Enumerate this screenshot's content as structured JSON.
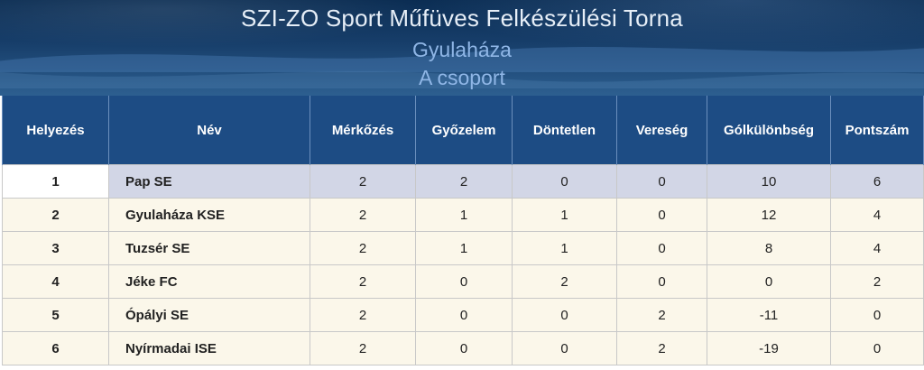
{
  "header": {
    "title": "SZI-ZO Sport Műfüves Felkészülési Torna",
    "venue": "Gyulaháza",
    "group": "A csoport"
  },
  "table": {
    "columns": [
      "Helyezés",
      "Név",
      "Mérkőzés",
      "Győzelem",
      "Döntetlen",
      "Vereség",
      "Gólkülönbség",
      "Pontszám"
    ],
    "rows": [
      {
        "pos": "1",
        "name": "Pap SE",
        "played": "2",
        "won": "2",
        "draw": "0",
        "lost": "0",
        "gd": "10",
        "pts": "6"
      },
      {
        "pos": "2",
        "name": "Gyulaháza KSE",
        "played": "2",
        "won": "1",
        "draw": "1",
        "lost": "0",
        "gd": "12",
        "pts": "4"
      },
      {
        "pos": "3",
        "name": "Tuzsér SE",
        "played": "2",
        "won": "1",
        "draw": "1",
        "lost": "0",
        "gd": "8",
        "pts": "4"
      },
      {
        "pos": "4",
        "name": "Jéke FC",
        "played": "2",
        "won": "0",
        "draw": "2",
        "lost": "0",
        "gd": "0",
        "pts": "2"
      },
      {
        "pos": "5",
        "name": "Ópályi SE",
        "played": "2",
        "won": "0",
        "draw": "0",
        "lost": "2",
        "gd": "-11",
        "pts": "0"
      },
      {
        "pos": "6",
        "name": "Nyírmadai ISE",
        "played": "2",
        "won": "0",
        "draw": "0",
        "lost": "2",
        "gd": "-19",
        "pts": "0"
      }
    ]
  }
}
